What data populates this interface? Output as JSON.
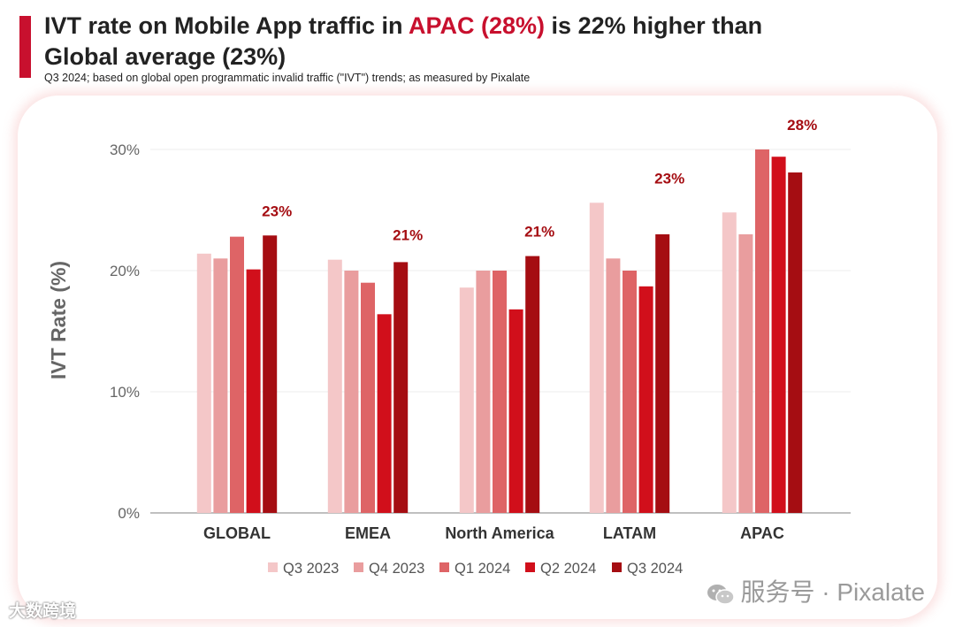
{
  "header": {
    "title_prefix": "IVT rate on Mobile App traffic in ",
    "title_highlight": "APAC (28%)",
    "title_suffix": " is 22% higher than Global average (23%)",
    "subtitle": "Q3 2024; based on global open programmatic invalid traffic (\"IVT\") trends; as measured by Pixalate"
  },
  "chart_data": {
    "type": "bar",
    "title": "IVT rate on Mobile App traffic in APAC (28%) is 22% higher than Global average (23%)",
    "xlabel": "",
    "ylabel": "IVT Rate (%)",
    "ylim": [
      0,
      30
    ],
    "yticks": [
      0,
      10,
      20,
      30
    ],
    "ytick_labels": [
      "0%",
      "10%",
      "20%",
      "30%"
    ],
    "grid": true,
    "legend_position": "bottom",
    "categories": [
      "GLOBAL",
      "EMEA",
      "North America",
      "LATAM",
      "APAC"
    ],
    "series": [
      {
        "name": "Q3 2023",
        "color": "#f4c7c8",
        "values": [
          21.4,
          20.9,
          18.6,
          25.6,
          24.8
        ]
      },
      {
        "name": "Q4 2023",
        "color": "#e99d9e",
        "values": [
          21.0,
          20.0,
          20.0,
          21.0,
          23.0
        ]
      },
      {
        "name": "Q1 2024",
        "color": "#de6466",
        "values": [
          22.8,
          19.0,
          20.0,
          20.0,
          30.0
        ]
      },
      {
        "name": "Q2 2024",
        "color": "#d10f1b",
        "values": [
          20.1,
          16.4,
          16.8,
          18.7,
          29.4
        ]
      },
      {
        "name": "Q3 2024",
        "color": "#a50d12",
        "values": [
          22.9,
          20.7,
          21.2,
          23.0,
          28.1
        ]
      }
    ],
    "annotations": [
      "23%",
      "21%",
      "21%",
      "23%",
      "28%"
    ],
    "annotation_color": "#a50d12"
  },
  "watermark": {
    "right_text": "服务号 · Pixalate",
    "left_text": "大数跨境"
  }
}
